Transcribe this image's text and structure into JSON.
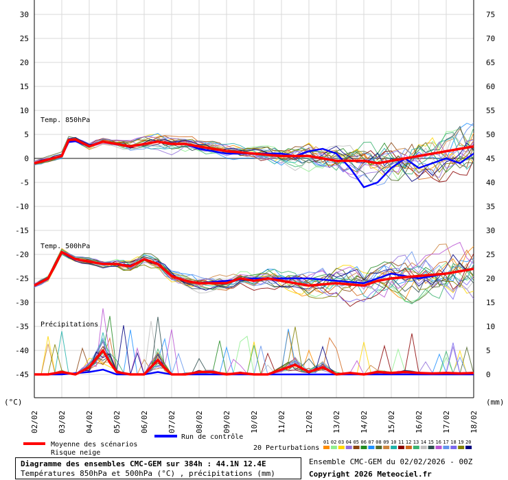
{
  "chart_data": {
    "type": "line",
    "title": "Diagramme des ensembles CMC-GEM sur 384h : 44.1N 12.4E",
    "subtitle": "Températures 850hPa et 500hPa (°C) , précipitations (mm)",
    "run_label": "Ensemble CMC-GEM du 02/02/2026 - 00Z",
    "copyright": "Copyright 2026 Meteociel.fr",
    "left_unit": "(°C)",
    "right_unit": "(mm)",
    "left_axis": {
      "ylim": [
        -45,
        30
      ],
      "ticks": [
        "30",
        "25",
        "20",
        "15",
        "10",
        "5",
        "0",
        "-5",
        "-10",
        "-15",
        "-20",
        "-25",
        "-30",
        "-35",
        "-40",
        "-45"
      ]
    },
    "right_axis": {
      "ylim": [
        0,
        75
      ],
      "ticks": [
        "75",
        "70",
        "65",
        "60",
        "55",
        "50",
        "45",
        "40",
        "35",
        "30",
        "25",
        "20",
        "15",
        "10",
        "5",
        "0"
      ]
    },
    "x_ticks": [
      "02/02",
      "03/02",
      "04/02",
      "05/02",
      "06/02",
      "07/02",
      "08/02",
      "09/02",
      "10/02",
      "11/02",
      "12/02",
      "13/02",
      "14/02",
      "15/02",
      "16/02",
      "17/02",
      "18/02"
    ],
    "annotations": {
      "t850": "Temp. 850hPa",
      "t500": "Temp. 500hPa",
      "precip": "Précipitations"
    },
    "legend": {
      "mean": "Moyenne des scénarios",
      "snow": "Risque neige",
      "control": "Run de contrôle",
      "perturbations": "20 Perturbations",
      "member_labels": [
        "01",
        "02",
        "03",
        "04",
        "05",
        "06",
        "07",
        "08",
        "09",
        "10",
        "11",
        "12",
        "13",
        "14",
        "15",
        "16",
        "17",
        "18",
        "19",
        "20"
      ]
    },
    "colors": {
      "mean": "#ff0000",
      "control": "#0000ff",
      "members": [
        "#ff8c00",
        "#90ee90",
        "#ffd700",
        "#9370db",
        "#8b4513",
        "#228b22",
        "#1e90ff",
        "#556b2f",
        "#cd853f",
        "#20b2aa",
        "#8b0000",
        "#d2691e",
        "#3cb371",
        "#c0c0c0",
        "#2f4f4f",
        "#ba55d3",
        "#6495ed",
        "#7b68ee",
        "#808000",
        "#000080"
      ]
    },
    "steps_per_day": 4,
    "series": [
      {
        "name": "Moyenne des scénarios",
        "role": "mean",
        "variable": "t850",
        "keys": [
          [
            0,
            -1
          ],
          [
            1,
            0.5
          ],
          [
            1.3,
            4.5
          ],
          [
            2,
            2.5
          ],
          [
            2.5,
            3.5
          ],
          [
            3,
            3
          ],
          [
            3.5,
            2.5
          ],
          [
            4,
            3
          ],
          [
            4.5,
            3.5
          ],
          [
            5,
            3
          ],
          [
            5.5,
            3
          ],
          [
            6,
            2.5
          ],
          [
            7,
            1.5
          ],
          [
            8,
            1
          ],
          [
            9,
            0.5
          ],
          [
            10,
            0.5
          ],
          [
            11,
            -0.5
          ],
          [
            12,
            -0.5
          ],
          [
            12.5,
            -1
          ],
          [
            13,
            -0.5
          ],
          [
            14,
            0.5
          ],
          [
            15,
            1.5
          ],
          [
            16,
            2.5
          ],
          [
            16.5,
            3
          ],
          [
            17,
            2.5
          ],
          [
            17.5,
            3
          ],
          [
            18,
            3.5
          ]
        ]
      },
      {
        "name": "Moyenne des scénarios",
        "role": "mean",
        "variable": "t500",
        "keys": [
          [
            0,
            -26.5
          ],
          [
            0.5,
            -25
          ],
          [
            1,
            -19.5
          ],
          [
            1.5,
            -21
          ],
          [
            2,
            -21.5
          ],
          [
            2.5,
            -22
          ],
          [
            3,
            -22
          ],
          [
            3.5,
            -22.5
          ],
          [
            4,
            -21
          ],
          [
            4.5,
            -22
          ],
          [
            5,
            -24.5
          ],
          [
            5.5,
            -25.5
          ],
          [
            6,
            -26
          ],
          [
            6.5,
            -26
          ],
          [
            7,
            -26
          ],
          [
            7.5,
            -25
          ],
          [
            8,
            -25.5
          ],
          [
            8.5,
            -25
          ],
          [
            9,
            -25.5
          ],
          [
            10,
            -26.5
          ],
          [
            11,
            -26
          ],
          [
            12,
            -26.5
          ],
          [
            12.5,
            -25.5
          ],
          [
            13,
            -25
          ],
          [
            14,
            -24.5
          ],
          [
            15,
            -24
          ],
          [
            16,
            -23
          ],
          [
            16.5,
            -22
          ],
          [
            17,
            -22
          ],
          [
            18,
            -22.5
          ]
        ]
      },
      {
        "name": "Moyenne des scénarios",
        "role": "mean",
        "variable": "precip",
        "keys": [
          [
            0,
            0
          ],
          [
            0.5,
            0
          ],
          [
            1,
            0.5
          ],
          [
            1.5,
            0
          ],
          [
            2,
            1.5
          ],
          [
            2.5,
            5
          ],
          [
            2.8,
            2
          ],
          [
            3,
            0.5
          ],
          [
            3.5,
            0
          ],
          [
            4,
            0
          ],
          [
            4.5,
            3
          ],
          [
            4.8,
            1
          ],
          [
            5,
            0
          ],
          [
            5.5,
            0
          ],
          [
            6,
            0.5
          ],
          [
            6.5,
            0.5
          ],
          [
            7,
            0
          ],
          [
            7.5,
            0.3
          ],
          [
            8,
            0
          ],
          [
            8.5,
            0
          ],
          [
            9,
            1
          ],
          [
            9.5,
            2
          ],
          [
            10,
            0.5
          ],
          [
            10.5,
            1.5
          ],
          [
            11,
            0
          ],
          [
            11.5,
            0.3
          ],
          [
            12,
            0
          ],
          [
            12.5,
            0.5
          ],
          [
            13,
            0.3
          ],
          [
            13.5,
            0.5
          ],
          [
            14,
            0.3
          ],
          [
            14.5,
            0.2
          ],
          [
            15,
            0.3
          ],
          [
            15.5,
            0.2
          ],
          [
            16,
            0.3
          ],
          [
            16.5,
            0.2
          ],
          [
            17,
            0.3
          ],
          [
            17.5,
            0.3
          ],
          [
            18,
            0.3
          ]
        ]
      },
      {
        "name": "Run de contrôle",
        "role": "control",
        "variable": "t850",
        "keys": [
          [
            0,
            -1
          ],
          [
            1,
            0.5
          ],
          [
            1.3,
            4
          ],
          [
            2,
            2.5
          ],
          [
            2.5,
            3.5
          ],
          [
            3,
            3
          ],
          [
            3.5,
            2.5
          ],
          [
            4,
            3
          ],
          [
            4.5,
            3.5
          ],
          [
            5,
            3
          ],
          [
            5.5,
            3
          ],
          [
            6,
            2
          ],
          [
            7,
            1
          ],
          [
            8,
            1
          ],
          [
            9,
            1
          ],
          [
            9.5,
            0.5
          ],
          [
            10,
            1.5
          ],
          [
            10.5,
            2
          ],
          [
            11,
            1
          ],
          [
            11.5,
            -2
          ],
          [
            12,
            -6
          ],
          [
            12.5,
            -5
          ],
          [
            13,
            -2
          ],
          [
            13.5,
            0
          ],
          [
            14,
            -2
          ],
          [
            14.5,
            -1
          ],
          [
            15,
            0
          ],
          [
            15.5,
            -1
          ],
          [
            16,
            1
          ],
          [
            16.5,
            3
          ],
          [
            17,
            1
          ],
          [
            17.5,
            3
          ],
          [
            18,
            1
          ]
        ]
      },
      {
        "name": "Run de contrôle",
        "role": "control",
        "variable": "t500",
        "keys": [
          [
            0,
            -26.5
          ],
          [
            0.5,
            -25
          ],
          [
            1,
            -19.5
          ],
          [
            1.5,
            -21
          ],
          [
            2,
            -21.5
          ],
          [
            2.5,
            -22
          ],
          [
            3,
            -22
          ],
          [
            3.5,
            -22.5
          ],
          [
            4,
            -21
          ],
          [
            4.5,
            -22
          ],
          [
            5,
            -24.5
          ],
          [
            5.5,
            -25.5
          ],
          [
            6,
            -26
          ],
          [
            7,
            -25.5
          ],
          [
            8,
            -25
          ],
          [
            9,
            -25
          ],
          [
            10,
            -25
          ],
          [
            11,
            -25.5
          ],
          [
            12,
            -26
          ],
          [
            13,
            -24
          ],
          [
            14,
            -25
          ],
          [
            15,
            -24
          ],
          [
            16,
            -23
          ],
          [
            17,
            -22
          ],
          [
            18,
            -22
          ]
        ]
      },
      {
        "name": "Run de contrôle",
        "role": "control",
        "variable": "precip",
        "keys": [
          [
            0,
            0
          ],
          [
            1,
            0
          ],
          [
            2,
            0.5
          ],
          [
            2.5,
            1
          ],
          [
            3,
            0
          ],
          [
            4,
            0
          ],
          [
            4.5,
            0.5
          ],
          [
            5,
            0
          ],
          [
            6,
            0
          ],
          [
            7,
            0
          ],
          [
            8,
            0
          ],
          [
            9,
            0
          ],
          [
            10,
            0
          ],
          [
            11,
            0
          ],
          [
            12,
            0
          ],
          [
            13,
            0
          ],
          [
            14,
            0
          ],
          [
            15,
            0
          ],
          [
            16,
            0
          ],
          [
            17,
            0
          ],
          [
            18,
            0
          ]
        ]
      }
    ]
  }
}
